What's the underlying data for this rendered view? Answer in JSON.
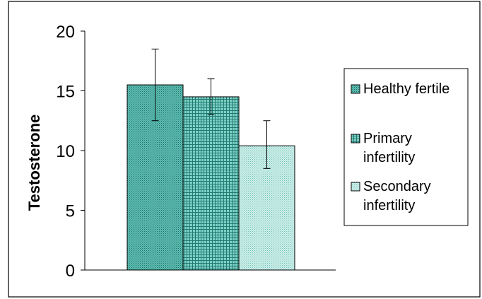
{
  "chart_data": {
    "type": "bar",
    "title": "",
    "xlabel": "",
    "ylabel": "Testosterone",
    "ylim": [
      0,
      20
    ],
    "yticks": [
      0,
      5,
      10,
      15,
      20
    ],
    "grid": false,
    "legend_position": "right",
    "series": [
      {
        "name": "Healthy fertile",
        "value": 15.5,
        "error_low": 12.5,
        "error_high": 18.5,
        "fill": "#4fb3a8",
        "pattern": "dots-dense"
      },
      {
        "name": "Primary infertility",
        "value": 14.5,
        "error_low": 13.0,
        "error_high": 16.0,
        "fill": "#5cc0b4",
        "pattern": "grid"
      },
      {
        "name": "Secondary infertility",
        "value": 10.4,
        "error_low": 8.5,
        "error_high": 12.5,
        "fill": "#b8e4de",
        "pattern": "dots-light"
      }
    ]
  }
}
